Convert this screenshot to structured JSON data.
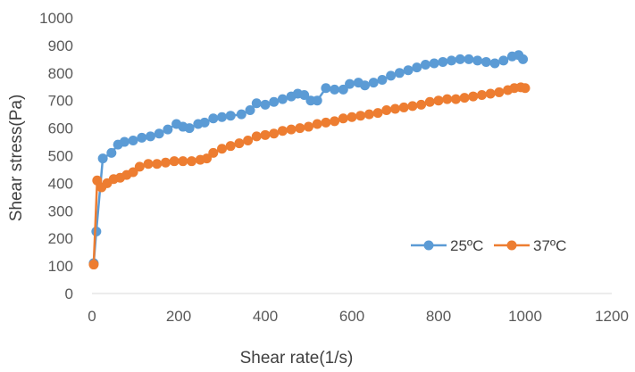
{
  "chart_data": {
    "type": "line",
    "title": "",
    "xlabel": "Shear rate(1/s)",
    "ylabel": "Shear stress(Pa)",
    "xlim": [
      0,
      1200
    ],
    "ylim": [
      0,
      1000
    ],
    "x_ticks": [
      "0",
      "200",
      "400",
      "600",
      "800",
      "1000",
      "1200"
    ],
    "y_ticks": [
      "0",
      "100",
      "200",
      "300",
      "400",
      "500",
      "600",
      "700",
      "800",
      "900",
      "1000"
    ],
    "grid": false,
    "legend_position": "right",
    "series": [
      {
        "name": "25ºC",
        "color": "#5B9BD5",
        "points": [
          [
            4,
            110
          ],
          [
            10,
            225
          ],
          [
            25,
            490
          ],
          [
            45,
            510
          ],
          [
            60,
            540
          ],
          [
            75,
            550
          ],
          [
            95,
            555
          ],
          [
            115,
            565
          ],
          [
            135,
            570
          ],
          [
            155,
            580
          ],
          [
            175,
            595
          ],
          [
            195,
            615
          ],
          [
            210,
            605
          ],
          [
            225,
            600
          ],
          [
            245,
            615
          ],
          [
            260,
            620
          ],
          [
            280,
            635
          ],
          [
            300,
            640
          ],
          [
            320,
            645
          ],
          [
            345,
            650
          ],
          [
            365,
            665
          ],
          [
            380,
            690
          ],
          [
            400,
            685
          ],
          [
            420,
            695
          ],
          [
            440,
            705
          ],
          [
            460,
            715
          ],
          [
            475,
            725
          ],
          [
            490,
            720
          ],
          [
            505,
            700
          ],
          [
            520,
            700
          ],
          [
            540,
            745
          ],
          [
            560,
            740
          ],
          [
            580,
            740
          ],
          [
            595,
            760
          ],
          [
            615,
            765
          ],
          [
            630,
            755
          ],
          [
            650,
            765
          ],
          [
            670,
            775
          ],
          [
            690,
            790
          ],
          [
            710,
            800
          ],
          [
            730,
            810
          ],
          [
            750,
            820
          ],
          [
            770,
            830
          ],
          [
            790,
            835
          ],
          [
            810,
            840
          ],
          [
            830,
            845
          ],
          [
            850,
            850
          ],
          [
            870,
            850
          ],
          [
            890,
            845
          ],
          [
            910,
            840
          ],
          [
            930,
            835
          ],
          [
            950,
            845
          ],
          [
            970,
            860
          ],
          [
            985,
            865
          ],
          [
            995,
            850
          ]
        ]
      },
      {
        "name": "37ºC",
        "color": "#ED7D31",
        "points": [
          [
            4,
            105
          ],
          [
            12,
            410
          ],
          [
            22,
            385
          ],
          [
            35,
            400
          ],
          [
            50,
            415
          ],
          [
            65,
            420
          ],
          [
            80,
            430
          ],
          [
            95,
            440
          ],
          [
            110,
            460
          ],
          [
            130,
            470
          ],
          [
            150,
            470
          ],
          [
            170,
            475
          ],
          [
            190,
            480
          ],
          [
            210,
            480
          ],
          [
            230,
            480
          ],
          [
            250,
            485
          ],
          [
            265,
            490
          ],
          [
            280,
            510
          ],
          [
            300,
            525
          ],
          [
            320,
            535
          ],
          [
            340,
            545
          ],
          [
            360,
            555
          ],
          [
            380,
            570
          ],
          [
            400,
            575
          ],
          [
            420,
            580
          ],
          [
            440,
            590
          ],
          [
            460,
            595
          ],
          [
            480,
            600
          ],
          [
            500,
            605
          ],
          [
            520,
            615
          ],
          [
            540,
            620
          ],
          [
            560,
            625
          ],
          [
            580,
            635
          ],
          [
            600,
            640
          ],
          [
            620,
            645
          ],
          [
            640,
            650
          ],
          [
            660,
            655
          ],
          [
            680,
            665
          ],
          [
            700,
            670
          ],
          [
            720,
            675
          ],
          [
            740,
            680
          ],
          [
            760,
            685
          ],
          [
            780,
            695
          ],
          [
            800,
            700
          ],
          [
            820,
            705
          ],
          [
            840,
            705
          ],
          [
            860,
            710
          ],
          [
            880,
            715
          ],
          [
            900,
            720
          ],
          [
            920,
            725
          ],
          [
            940,
            730
          ],
          [
            960,
            738
          ],
          [
            975,
            745
          ],
          [
            990,
            748
          ],
          [
            1000,
            745
          ]
        ]
      }
    ]
  }
}
